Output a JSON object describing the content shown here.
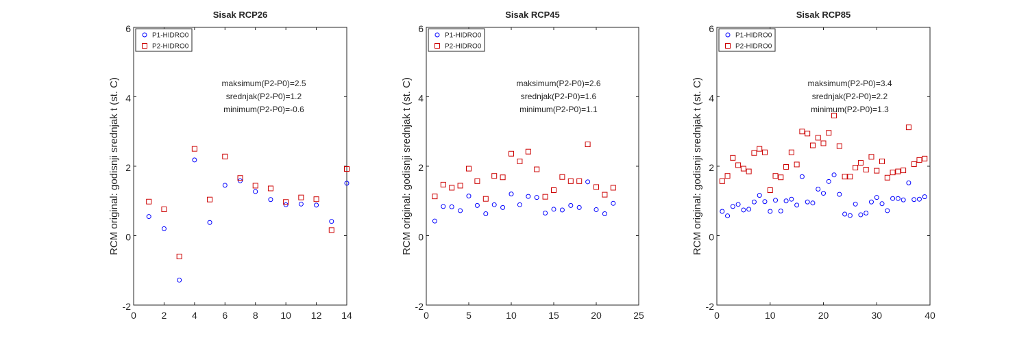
{
  "colors": {
    "p1": "#0000ff",
    "p2": "#cc0000",
    "axis": "#262626"
  },
  "chart_data": [
    {
      "type": "scatter",
      "title": "Sisak RCP26",
      "xlabel": "",
      "ylabel": "RCM original: godisnji srednjak t (st. C)",
      "xlim": [
        0,
        14
      ],
      "ylim": [
        -2,
        6
      ],
      "xticks": [
        0,
        2,
        4,
        6,
        8,
        10,
        12,
        14
      ],
      "yticks": [
        -2,
        0,
        2,
        4,
        6
      ],
      "grid": false,
      "legend_position": "top-left",
      "annotations": [
        "maksimum(P2-P0)=2.5",
        "srednjak(P2-P0)=1.2",
        "minimum(P2-P0)=-0.6"
      ],
      "series": [
        {
          "name": "P1-HIDRO0",
          "marker": "circle",
          "x": [
            1,
            2,
            3,
            4,
            5,
            6,
            7,
            8,
            9,
            10,
            11,
            12,
            13,
            14
          ],
          "y": [
            0.55,
            0.2,
            -1.28,
            2.18,
            0.38,
            1.45,
            1.58,
            1.27,
            1.04,
            0.89,
            0.91,
            0.88,
            0.41,
            1.51
          ]
        },
        {
          "name": "P2-HIDRO0",
          "marker": "square",
          "x": [
            1,
            2,
            3,
            4,
            5,
            6,
            7,
            8,
            9,
            10,
            11,
            12,
            13,
            14
          ],
          "y": [
            0.98,
            0.76,
            -0.6,
            2.5,
            1.04,
            2.28,
            1.66,
            1.44,
            1.36,
            0.97,
            1.1,
            1.05,
            0.16,
            1.92
          ]
        }
      ]
    },
    {
      "type": "scatter",
      "title": "Sisak RCP45",
      "xlabel": "",
      "ylabel": "RCM original: godisnji srednjak t (st. C)",
      "xlim": [
        0,
        25
      ],
      "ylim": [
        -2,
        6
      ],
      "xticks": [
        0,
        5,
        10,
        15,
        20,
        25
      ],
      "yticks": [
        -2,
        0,
        2,
        4,
        6
      ],
      "grid": false,
      "legend_position": "top-left",
      "annotations": [
        "maksimum(P2-P0)=2.6",
        "srednjak(P2-P0)=1.6",
        "minimum(P2-P0)=1.1"
      ],
      "series": [
        {
          "name": "P1-HIDRO0",
          "marker": "circle",
          "x": [
            1,
            2,
            3,
            4,
            5,
            6,
            7,
            8,
            9,
            10,
            11,
            12,
            13,
            14,
            15,
            16,
            17,
            18,
            19,
            20,
            21,
            22
          ],
          "y": [
            0.42,
            0.84,
            0.83,
            0.72,
            1.14,
            0.87,
            0.63,
            0.89,
            0.81,
            1.2,
            0.89,
            1.13,
            1.1,
            0.65,
            0.76,
            0.74,
            0.87,
            0.81,
            1.55,
            0.75,
            0.63,
            0.93
          ]
        },
        {
          "name": "P2-HIDRO0",
          "marker": "square",
          "x": [
            1,
            2,
            3,
            4,
            5,
            6,
            7,
            8,
            9,
            10,
            11,
            12,
            13,
            14,
            15,
            16,
            17,
            18,
            19,
            20,
            21,
            22
          ],
          "y": [
            1.13,
            1.47,
            1.38,
            1.44,
            1.93,
            1.57,
            1.06,
            1.72,
            1.68,
            2.36,
            2.14,
            2.42,
            1.91,
            1.12,
            1.31,
            1.69,
            1.57,
            1.57,
            2.63,
            1.4,
            1.18,
            1.38
          ]
        }
      ]
    },
    {
      "type": "scatter",
      "title": "Sisak RCP85",
      "xlabel": "",
      "ylabel": "RCM original: godisnji srednjak t (st. C)",
      "xlim": [
        0,
        40
      ],
      "ylim": [
        -2,
        6
      ],
      "xticks": [
        0,
        10,
        20,
        30,
        40
      ],
      "yticks": [
        -2,
        0,
        2,
        4,
        6
      ],
      "grid": false,
      "legend_position": "top-left",
      "annotations": [
        "maksimum(P2-P0)=3.4",
        "srednjak(P2-P0)=2.2",
        "minimum(P2-P0)=1.3"
      ],
      "series": [
        {
          "name": "P1-HIDRO0",
          "marker": "circle",
          "x": [
            1,
            2,
            3,
            4,
            5,
            6,
            7,
            8,
            9,
            10,
            11,
            12,
            13,
            14,
            15,
            16,
            17,
            18,
            19,
            20,
            21,
            22,
            23,
            24,
            25,
            26,
            27,
            28,
            29,
            30,
            31,
            32,
            33,
            34,
            35,
            36,
            37,
            38,
            39
          ],
          "y": [
            0.7,
            0.57,
            0.84,
            0.9,
            0.74,
            0.76,
            0.97,
            1.16,
            0.98,
            0.7,
            1.02,
            0.71,
            1.0,
            1.05,
            0.88,
            1.7,
            0.97,
            0.94,
            1.34,
            1.22,
            1.56,
            1.75,
            1.19,
            0.62,
            0.58,
            0.91,
            0.6,
            0.65,
            0.97,
            1.1,
            0.92,
            0.72,
            1.07,
            1.07,
            1.03,
            1.52,
            1.04,
            1.05,
            1.12
          ]
        },
        {
          "name": "P2-HIDRO0",
          "marker": "square",
          "x": [
            1,
            2,
            3,
            4,
            5,
            6,
            7,
            8,
            9,
            10,
            11,
            12,
            13,
            14,
            15,
            16,
            17,
            18,
            19,
            20,
            21,
            22,
            23,
            24,
            25,
            26,
            27,
            28,
            29,
            30,
            31,
            32,
            33,
            34,
            35,
            36,
            37,
            38,
            39
          ],
          "y": [
            1.57,
            1.72,
            2.24,
            2.03,
            1.93,
            1.85,
            2.38,
            2.5,
            2.4,
            1.31,
            1.72,
            1.68,
            1.98,
            2.4,
            2.05,
            3.0,
            2.94,
            2.6,
            2.82,
            2.66,
            2.96,
            3.46,
            2.58,
            1.7,
            1.7,
            1.96,
            2.1,
            1.9,
            2.27,
            1.87,
            2.14,
            1.67,
            1.82,
            1.85,
            1.88,
            3.12,
            2.06,
            2.18,
            2.22
          ]
        }
      ]
    }
  ]
}
